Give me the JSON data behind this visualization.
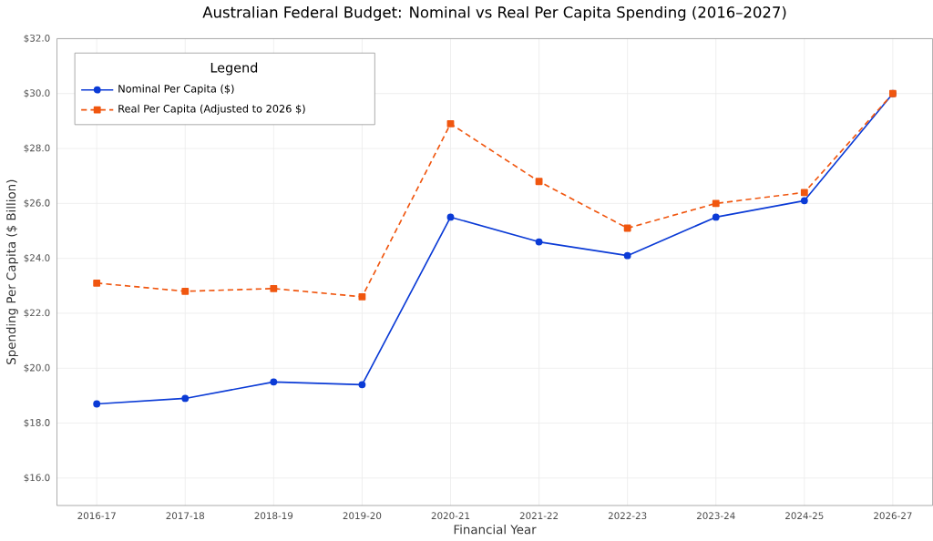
{
  "chart_data": {
    "type": "line",
    "title": "Australian Federal Budget: Nominal vs Real Per Capita Spending (2016–2027)",
    "xlabel": "Financial Year",
    "ylabel": "Spending Per Capita ($ Billion)",
    "legend_title": "Legend",
    "categories": [
      "2016-17",
      "2017-18",
      "2018-19",
      "2019-20",
      "2020-21",
      "2021-22",
      "2022-23",
      "2023-24",
      "2024-25",
      "2026-27"
    ],
    "series": [
      {
        "name": "Nominal Per Capita ($)",
        "color": "#0b3bd6",
        "marker": "circle",
        "line_style": "solid",
        "values": [
          18.7,
          18.9,
          19.5,
          19.4,
          25.5,
          24.6,
          24.1,
          25.5,
          26.1,
          30.0
        ]
      },
      {
        "name": "Real Per Capita (Adjusted to 2026 $)",
        "color": "#f0560f",
        "marker": "square",
        "line_style": "dashed",
        "values": [
          23.1,
          22.8,
          22.9,
          22.6,
          28.9,
          26.8,
          25.1,
          26.0,
          26.4,
          30.0
        ]
      }
    ],
    "ylim": [
      15,
      32
    ],
    "yticks": [
      {
        "value": 16,
        "label": "$16.0"
      },
      {
        "value": 18,
        "label": "$18.0"
      },
      {
        "value": 20,
        "label": "$20.0"
      },
      {
        "value": 22,
        "label": "$22.0"
      },
      {
        "value": 24,
        "label": "$24.0"
      },
      {
        "value": 26,
        "label": "$26.0"
      },
      {
        "value": 28,
        "label": "$28.0"
      },
      {
        "value": 30,
        "label": "$30.0"
      },
      {
        "value": 32,
        "label": "$32.0"
      }
    ],
    "grid": true,
    "legend": "top left"
  }
}
